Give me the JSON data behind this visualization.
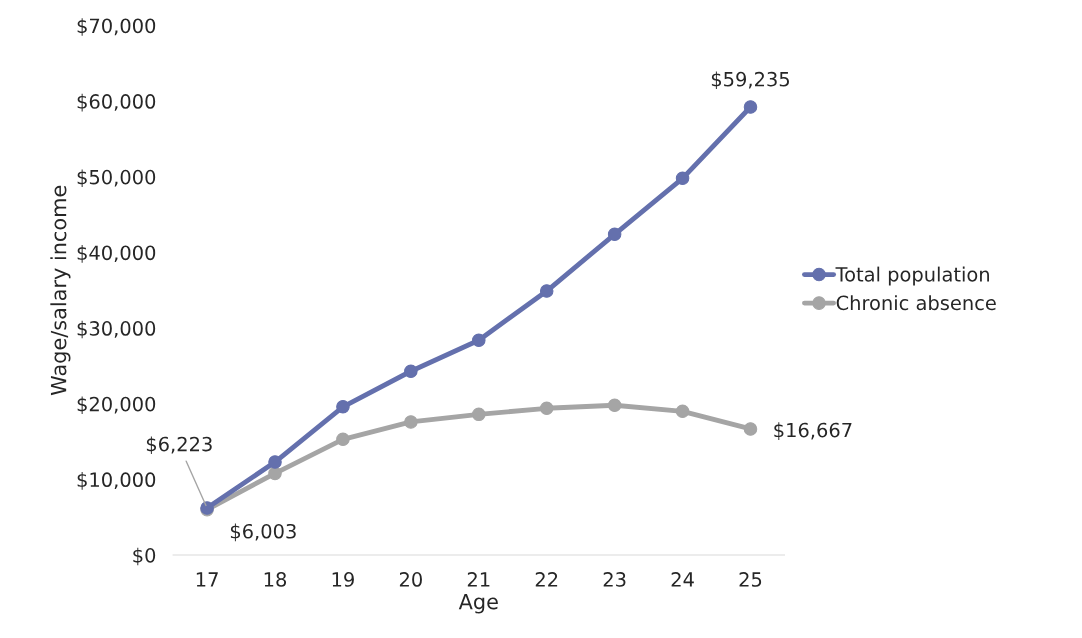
{
  "chart_data": {
    "type": "line",
    "xlabel": "Age",
    "ylabel": "Wage/salary income",
    "categories": [
      "17",
      "18",
      "19",
      "20",
      "21",
      "22",
      "23",
      "24",
      "25"
    ],
    "series": [
      {
        "name": "Chronic absence",
        "color": "#a5a5a5",
        "values": [
          6003,
          10800,
          15300,
          17600,
          18600,
          19400,
          19800,
          19000,
          16667
        ],
        "value_labels": [
          "$6,003",
          null,
          null,
          null,
          null,
          null,
          null,
          null,
          "$16,667"
        ]
      },
      {
        "name": "Total population",
        "color": "#6470ad",
        "values": [
          6223,
          12300,
          19600,
          24300,
          28400,
          34900,
          42400,
          49800,
          59235
        ],
        "value_labels": [
          "$6,223",
          null,
          null,
          null,
          null,
          null,
          null,
          null,
          "$59,235"
        ]
      }
    ],
    "ylim": [
      0,
      70000
    ],
    "yticks": [
      {
        "value": 0,
        "label": "$0"
      },
      {
        "value": 10000,
        "label": "$10,000"
      },
      {
        "value": 20000,
        "label": "$20,000"
      },
      {
        "value": 30000,
        "label": "$30,000"
      },
      {
        "value": 40000,
        "label": "$40,000"
      },
      {
        "value": 50000,
        "label": "$50,000"
      },
      {
        "value": 60000,
        "label": "$60,000"
      },
      {
        "value": 70000,
        "label": "$70,000"
      }
    ],
    "grid": false,
    "legend": "right",
    "marker": "circle",
    "line_style": "solid"
  }
}
